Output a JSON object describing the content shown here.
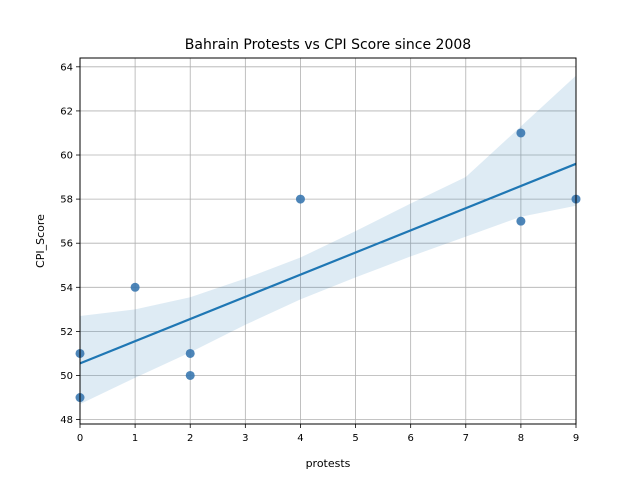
{
  "chart_data": {
    "type": "scatter",
    "title": "Bahrain Protests vs CPI Score since 2008",
    "xlabel": "protests",
    "ylabel": "CPI_Score",
    "xlim": [
      0,
      9
    ],
    "ylim": [
      47.8,
      64.4
    ],
    "xticks": [
      0,
      1,
      2,
      3,
      4,
      5,
      6,
      7,
      8,
      9
    ],
    "yticks": [
      48,
      50,
      52,
      54,
      56,
      58,
      60,
      62,
      64
    ],
    "grid": true,
    "points": [
      {
        "x": 0,
        "y": 49
      },
      {
        "x": 0,
        "y": 51
      },
      {
        "x": 1,
        "y": 54
      },
      {
        "x": 2,
        "y": 51
      },
      {
        "x": 2,
        "y": 50
      },
      {
        "x": 4,
        "y": 58
      },
      {
        "x": 8,
        "y": 61
      },
      {
        "x": 8,
        "y": 57
      },
      {
        "x": 9,
        "y": 58
      }
    ],
    "regression_line": {
      "x": [
        0,
        9
      ],
      "y": [
        50.55,
        59.6
      ]
    },
    "confidence_band": {
      "x": [
        0,
        1,
        2,
        3,
        4,
        5,
        6,
        7,
        8,
        9
      ],
      "upper": [
        52.7,
        53.0,
        53.55,
        54.4,
        55.35,
        56.55,
        57.8,
        59.0,
        61.3,
        63.6
      ],
      "lower": [
        48.7,
        49.9,
        51.05,
        52.3,
        53.45,
        54.45,
        55.4,
        56.3,
        57.2,
        57.7
      ]
    },
    "colors": {
      "point": "#3a78b0",
      "line": "#1f77b4",
      "band": "#1f77b4",
      "grid": "#b0b0b0"
    }
  }
}
